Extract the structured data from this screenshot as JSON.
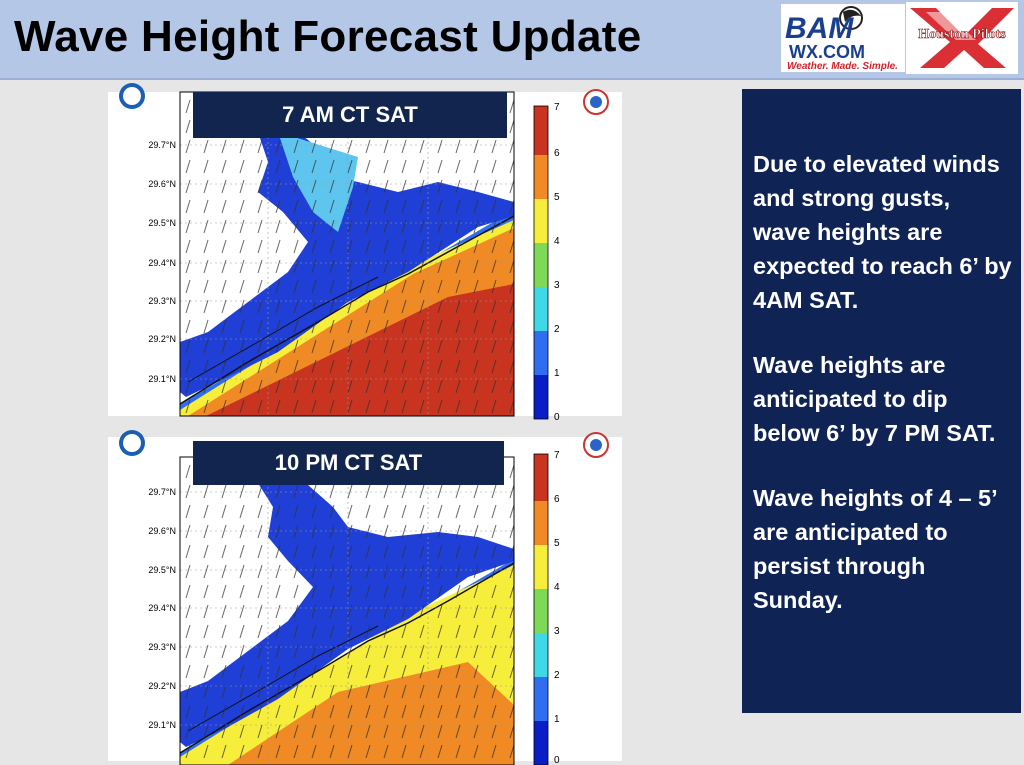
{
  "slide": {
    "title": "Wave Height Forecast Update"
  },
  "logos": {
    "bam_text": "BAM",
    "bam_domain": "WX.COM",
    "bam_tagline": "Weather. Made. Simple.",
    "houston_pilots": "Houston Pilots",
    "colors": {
      "bam_blue": "#1b3f8f",
      "bam_red": "#d2232a",
      "pilots_red": "#d61a1f"
    }
  },
  "maps": [
    {
      "time_label": "7 AM CT SAT",
      "lat_ticks": [
        "29.7°N",
        "29.6°N",
        "29.5°N",
        "29.4°N",
        "29.3°N",
        "29.2°N",
        "29.1°N"
      ],
      "colorbar_ticks": [
        "7",
        "6",
        "5",
        "4",
        "3",
        "2",
        "1",
        "0"
      ]
    },
    {
      "time_label": "10 PM CT SAT",
      "lat_ticks": [
        "29.7°N",
        "29.6°N",
        "29.5°N",
        "29.4°N",
        "29.3°N",
        "29.2°N",
        "29.1°N"
      ],
      "colorbar_ticks": [
        "7",
        "6",
        "5",
        "4",
        "3",
        "2",
        "1",
        "0"
      ]
    }
  ],
  "wave_scale_colors": [
    "#0a1ec8",
    "#2f6ef0",
    "#3ed8e6",
    "#7ed957",
    "#f6ee3a",
    "#f08a24",
    "#c83420"
  ],
  "info": {
    "paragraphs": [
      "Due to elevated winds and strong gusts, wave heights are expected to reach 6’ by 4AM SAT.",
      "Wave heights are anticipated to dip below 6’ by 7 PM SAT.",
      "Wave heights of 4 – 5’ are anticipated to persist through Sunday."
    ]
  }
}
